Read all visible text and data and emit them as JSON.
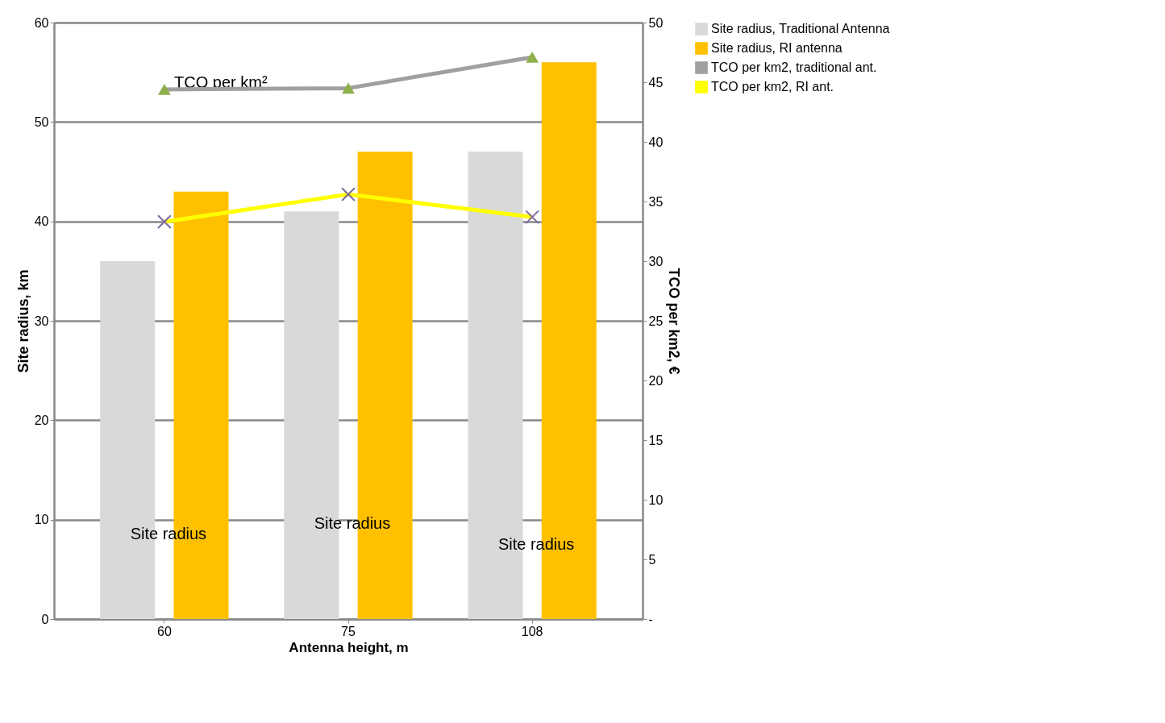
{
  "chart_data": {
    "type": "bar",
    "xlabel": "Antenna height, m",
    "ylabel": "Site radius, km",
    "y2label": "TCO per km2, €",
    "categories": [
      "60",
      "75",
      "108"
    ],
    "series": [
      {
        "name": "Site radius, Traditional Antenna",
        "color": "#d9d9d9",
        "values": [
          36,
          41,
          47
        ]
      },
      {
        "name": "Site radius, RI antenna",
        "color": "#ffc000",
        "values": [
          43,
          47,
          56
        ]
      },
      {
        "name": "TCO per km2, traditional ant.",
        "type": "line",
        "axis": "y2",
        "marker": "triangle",
        "color": "#a0a0a0",
        "values": [
          44.4,
          44.5,
          47.1
        ]
      },
      {
        "name": "TCO per km2, RI ant.",
        "type": "line",
        "axis": "y2",
        "marker": "cross",
        "color": "#ffff00",
        "values": [
          33.3,
          35.6,
          33.7
        ]
      }
    ],
    "ylim": [
      0,
      60
    ],
    "yticks": [
      0,
      10,
      20,
      30,
      40,
      50,
      60
    ],
    "y2lim": [
      0,
      50
    ],
    "y2ticks": [
      {
        "value": 0,
        "label": "-"
      },
      5,
      10,
      15,
      20,
      25,
      30,
      35,
      40,
      45,
      50
    ],
    "grid": "y",
    "legend": "right",
    "annotations": [
      "TCO per km²",
      "Site radius",
      "Site radius",
      "Site radius"
    ]
  }
}
